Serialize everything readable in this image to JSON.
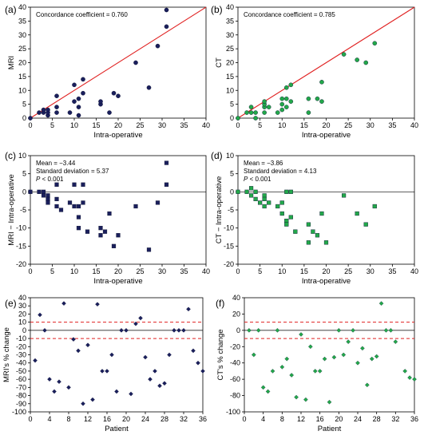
{
  "chart_data": [
    {
      "id": "a",
      "type": "scatter",
      "panel_label": "(a)",
      "xlabel": "Intra-operative",
      "ylabel": "MRI",
      "xlim": [
        0,
        40
      ],
      "ylim": [
        0,
        40
      ],
      "xticks": [
        "0",
        "5",
        "10",
        "15",
        "20",
        "25",
        "30",
        "35",
        "40"
      ],
      "yticks": [
        "0",
        "5",
        "10",
        "15",
        "20",
        "25",
        "30",
        "35",
        "40"
      ],
      "annotations": [
        "Concordance coefficient = 0.760"
      ],
      "identity_line": true,
      "marker": "circle",
      "color": "#1a1f5c",
      "line_color": "#e02020",
      "points": [
        [
          0,
          0
        ],
        [
          2,
          2
        ],
        [
          3,
          2
        ],
        [
          3,
          3
        ],
        [
          4,
          1
        ],
        [
          4,
          2
        ],
        [
          4,
          3
        ],
        [
          6,
          2
        ],
        [
          6,
          4
        ],
        [
          6,
          8
        ],
        [
          9,
          2
        ],
        [
          10,
          6
        ],
        [
          10,
          12
        ],
        [
          11,
          4
        ],
        [
          11,
          7
        ],
        [
          11,
          1
        ],
        [
          12,
          9
        ],
        [
          12,
          14
        ],
        [
          16,
          5
        ],
        [
          16,
          6
        ],
        [
          18,
          2
        ],
        [
          19,
          9
        ],
        [
          20,
          8
        ],
        [
          24,
          20
        ],
        [
          27,
          11
        ],
        [
          29,
          26
        ],
        [
          31,
          33
        ],
        [
          31,
          39
        ]
      ]
    },
    {
      "id": "b",
      "type": "scatter",
      "panel_label": "(b)",
      "xlabel": "Intra-operative",
      "ylabel": "CT",
      "xlim": [
        0,
        40
      ],
      "ylim": [
        0,
        40
      ],
      "xticks": [
        "0",
        "5",
        "10",
        "15",
        "20",
        "25",
        "30",
        "35",
        "40"
      ],
      "yticks": [
        "0",
        "5",
        "10",
        "15",
        "20",
        "25",
        "30",
        "35",
        "40"
      ],
      "annotations": [
        "Concordance coefficient = 0.785"
      ],
      "identity_line": true,
      "marker": "circle",
      "color": "#22a84a",
      "line_color": "#e02020",
      "points": [
        [
          0,
          0
        ],
        [
          2,
          2
        ],
        [
          3,
          4
        ],
        [
          3,
          2
        ],
        [
          4,
          2
        ],
        [
          4,
          0
        ],
        [
          6,
          2
        ],
        [
          6,
          4
        ],
        [
          6,
          5
        ],
        [
          6,
          6
        ],
        [
          7,
          4
        ],
        [
          9,
          2
        ],
        [
          10,
          3
        ],
        [
          10,
          5
        ],
        [
          10,
          7
        ],
        [
          11,
          4
        ],
        [
          11,
          7
        ],
        [
          11,
          11
        ],
        [
          12,
          12
        ],
        [
          12,
          6
        ],
        [
          16,
          2
        ],
        [
          16,
          7
        ],
        [
          18,
          7
        ],
        [
          19,
          6
        ],
        [
          19,
          13
        ],
        [
          24,
          23
        ],
        [
          27,
          21
        ],
        [
          29,
          20
        ],
        [
          31,
          27
        ]
      ]
    },
    {
      "id": "c",
      "type": "scatter",
      "panel_label": "(c)",
      "xlabel": "Intra-operative",
      "ylabel": "MRI − Intra-operative",
      "xlim": [
        0,
        40
      ],
      "ylim": [
        -20,
        10
      ],
      "xticks": [
        "0",
        "5",
        "10",
        "15",
        "20",
        "25",
        "30",
        "35",
        "40"
      ],
      "yticks": [
        "-20",
        "-15",
        "-10",
        "-5",
        "0",
        "5",
        "10"
      ],
      "annotations": [
        "Mean = −3.44",
        "Standard deviation = 5.37",
        "P < 0.001"
      ],
      "zero_line": true,
      "marker": "square",
      "color": "#1a1f5c",
      "points": [
        [
          0,
          0
        ],
        [
          2,
          0
        ],
        [
          3,
          0
        ],
        [
          3,
          -1
        ],
        [
          4,
          -1
        ],
        [
          4,
          -2
        ],
        [
          4,
          -3
        ],
        [
          6,
          -2
        ],
        [
          6,
          -4
        ],
        [
          6,
          2
        ],
        [
          7,
          -5
        ],
        [
          9,
          -3
        ],
        [
          10,
          2
        ],
        [
          10,
          -4
        ],
        [
          11,
          -4
        ],
        [
          11,
          -7
        ],
        [
          11,
          -10
        ],
        [
          12,
          -3
        ],
        [
          12,
          2
        ],
        [
          13,
          -11
        ],
        [
          16,
          -10
        ],
        [
          16,
          -12
        ],
        [
          17,
          -11
        ],
        [
          18,
          -6
        ],
        [
          19,
          -15
        ],
        [
          20,
          -12
        ],
        [
          24,
          -4
        ],
        [
          27,
          -16
        ],
        [
          29,
          -3
        ],
        [
          31,
          2
        ],
        [
          31,
          8
        ]
      ]
    },
    {
      "id": "d",
      "type": "scatter",
      "panel_label": "(d)",
      "xlabel": "Intra-operative",
      "ylabel": "CT − Intra-operative",
      "xlim": [
        0,
        40
      ],
      "ylim": [
        -20,
        10
      ],
      "xticks": [
        "0",
        "5",
        "10",
        "15",
        "20",
        "25",
        "30",
        "35",
        "40"
      ],
      "yticks": [
        "-20",
        "-15",
        "-10",
        "-5",
        "0",
        "5",
        "10"
      ],
      "annotations": [
        "Mean = −3.86",
        "Standard deviation = 4.13",
        "P < 0.001"
      ],
      "zero_line": true,
      "marker": "square",
      "color": "#22a84a",
      "points": [
        [
          0,
          0
        ],
        [
          2,
          0
        ],
        [
          3,
          1
        ],
        [
          3,
          -1
        ],
        [
          4,
          -2
        ],
        [
          4,
          0
        ],
        [
          5,
          -3
        ],
        [
          6,
          -1
        ],
        [
          6,
          -2
        ],
        [
          6,
          -4
        ],
        [
          7,
          -3
        ],
        [
          9,
          -4
        ],
        [
          10,
          -6
        ],
        [
          10,
          -3
        ],
        [
          11,
          0
        ],
        [
          11,
          -8
        ],
        [
          11,
          -9
        ],
        [
          12,
          -7
        ],
        [
          12,
          0
        ],
        [
          13,
          -11
        ],
        [
          16,
          -14
        ],
        [
          16,
          -9
        ],
        [
          17,
          -11
        ],
        [
          18,
          -12
        ],
        [
          19,
          -6
        ],
        [
          20,
          -14
        ],
        [
          24,
          -1
        ],
        [
          27,
          -6
        ],
        [
          29,
          -9
        ],
        [
          31,
          -4
        ]
      ]
    },
    {
      "id": "e",
      "type": "scatter",
      "panel_label": "(e)",
      "xlabel": "Patient",
      "ylabel": "MRI's % change",
      "xlim": [
        0,
        36
      ],
      "ylim": [
        -100,
        40
      ],
      "xticks": [
        "0",
        "4",
        "8",
        "12",
        "16",
        "20",
        "24",
        "28",
        "32",
        "36"
      ],
      "yticks": [
        "-100",
        "-90",
        "-80",
        "-70",
        "-60",
        "-50",
        "-40",
        "-30",
        "-20",
        "-10",
        "0",
        "10",
        "20",
        "30",
        "40"
      ],
      "annotations": [],
      "ref_lines": [
        10,
        -10
      ],
      "marker": "diamond",
      "color": "#1a1f5c",
      "ref_color": "#e02020",
      "points": [
        [
          1,
          -37
        ],
        [
          2,
          19
        ],
        [
          3,
          0
        ],
        [
          4,
          -60
        ],
        [
          5,
          -75
        ],
        [
          6,
          -63
        ],
        [
          7,
          33
        ],
        [
          8,
          -70
        ],
        [
          9,
          -11
        ],
        [
          10,
          -25
        ],
        [
          11,
          -90
        ],
        [
          12,
          -18
        ],
        [
          13,
          -85
        ],
        [
          14,
          32
        ],
        [
          15,
          -50
        ],
        [
          16,
          -50
        ],
        [
          17,
          -30
        ],
        [
          18,
          -75
        ],
        [
          19,
          0
        ],
        [
          20,
          0
        ],
        [
          21,
          -78
        ],
        [
          22,
          8
        ],
        [
          23,
          15
        ],
        [
          24,
          -33
        ],
        [
          25,
          -60
        ],
        [
          26,
          -50
        ],
        [
          27,
          -68
        ],
        [
          28,
          -65
        ],
        [
          29,
          -30
        ],
        [
          30,
          0
        ],
        [
          31,
          0
        ],
        [
          32,
          0
        ],
        [
          33,
          26
        ],
        [
          34,
          -25
        ],
        [
          35,
          -40
        ],
        [
          36,
          -50
        ]
      ]
    },
    {
      "id": "f",
      "type": "scatter",
      "panel_label": "(f)",
      "xlabel": "Patient",
      "ylabel": "CT's % change",
      "xlim": [
        0,
        36
      ],
      "ylim": [
        -100,
        40
      ],
      "xticks": [
        "0",
        "4",
        "8",
        "12",
        "16",
        "20",
        "24",
        "28",
        "32",
        "36"
      ],
      "yticks": [
        "-100",
        "-80",
        "-60",
        "-40",
        "-20",
        "0",
        "20",
        "40"
      ],
      "annotations": [],
      "ref_lines": [
        10,
        -10
      ],
      "marker": "diamond",
      "color": "#22a84a",
      "ref_color": "#e02020",
      "points": [
        [
          1,
          0
        ],
        [
          2,
          -30
        ],
        [
          3,
          0
        ],
        [
          4,
          -70
        ],
        [
          5,
          -75
        ],
        [
          6,
          -50
        ],
        [
          7,
          0
        ],
        [
          8,
          -45
        ],
        [
          9,
          -35
        ],
        [
          10,
          -55
        ],
        [
          11,
          -82
        ],
        [
          12,
          -5
        ],
        [
          13,
          -85
        ],
        [
          14,
          -20
        ],
        [
          15,
          -50
        ],
        [
          16,
          -50
        ],
        [
          17,
          -35
        ],
        [
          18,
          -88
        ],
        [
          19,
          -33
        ],
        [
          20,
          0
        ],
        [
          21,
          -30
        ],
        [
          22,
          -14
        ],
        [
          23,
          0
        ],
        [
          24,
          -40
        ],
        [
          25,
          -22
        ],
        [
          26,
          -67
        ],
        [
          27,
          -35
        ],
        [
          28,
          -32
        ],
        [
          29,
          33
        ],
        [
          30,
          0
        ],
        [
          31,
          0
        ],
        [
          32,
          -14
        ],
        [
          34,
          -50
        ],
        [
          35,
          -58
        ],
        [
          36,
          -60
        ]
      ]
    }
  ]
}
